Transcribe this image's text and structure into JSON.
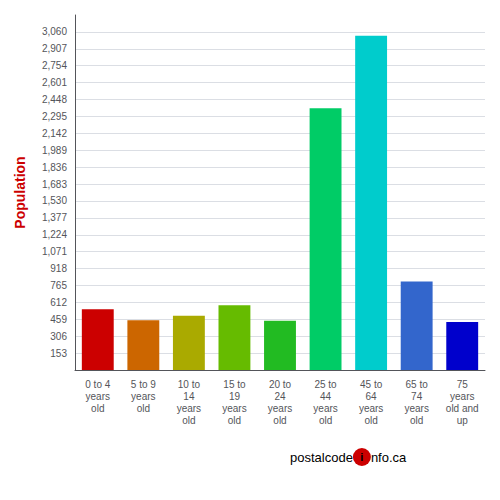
{
  "chart_data": {
    "type": "bar",
    "categories": [
      "0 to 4\nyears\nold",
      "5 to 9\nyears\nold",
      "10 to\n14\nyears\nold",
      "15 to\n19\nyears\nold",
      "20 to\n24\nyears\nold",
      "25 to\n44\nyears\nold",
      "45 to\n64\nyears\nold",
      "65 to\n74\nyears\nold",
      "75\nyears\nold and\nup"
    ],
    "values": [
      550,
      450,
      490,
      585,
      445,
      2370,
      3025,
      800,
      435
    ],
    "colors": [
      "#cc0000",
      "#cc6600",
      "#aaaa00",
      "#66bb00",
      "#22bb22",
      "#00cc66",
      "#00cccc",
      "#3366cc",
      "#0000cc"
    ],
    "ylabel": "Population",
    "ylabel_color": "#cc0000",
    "ylim": [
      0,
      3213
    ],
    "yticks": [
      153,
      306,
      459,
      612,
      765,
      918,
      1071,
      1224,
      1377,
      1530,
      1683,
      1836,
      1989,
      2142,
      2295,
      2448,
      2601,
      2754,
      2907,
      3060
    ],
    "grid": true,
    "annotations": [
      {
        "text": "postalcode",
        "color": "#cc6600"
      },
      {
        "text": "i",
        "color": "#cc0000"
      },
      {
        "text": "nfo.ca",
        "color": "#cc6600"
      }
    ]
  }
}
